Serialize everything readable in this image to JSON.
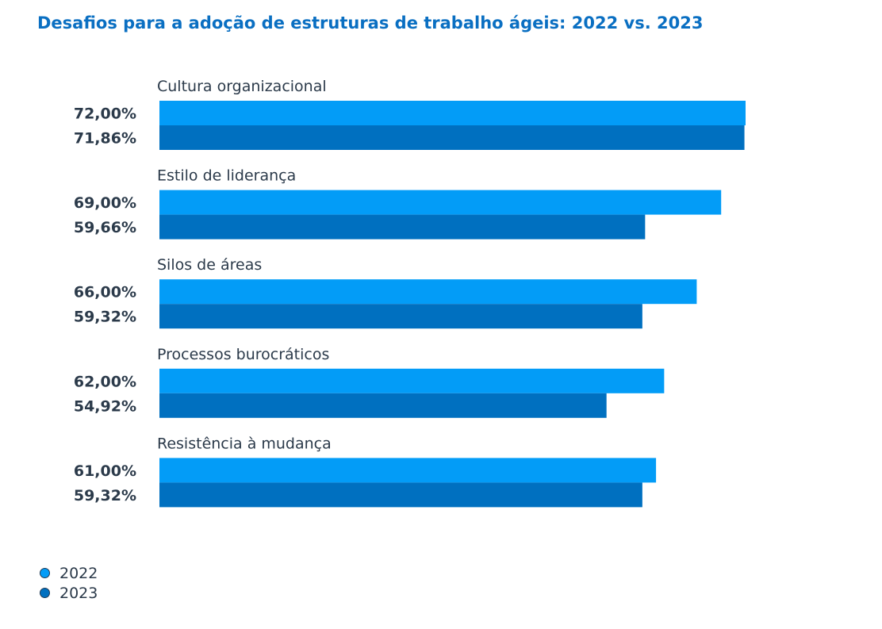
{
  "colors": {
    "title": "#0a6fc2",
    "series_2022": "#039cf7",
    "series_2023": "#0070c0",
    "text": "#2b3a4a"
  },
  "chart_data": {
    "type": "bar",
    "orientation": "horizontal",
    "title": "Desafios para a adoção de estruturas de trabalho ágeis: 2022 vs. 2023",
    "categories": [
      "Cultura organizacional",
      "Estilo de liderança",
      "Silos de áreas",
      "Processos burocráticos",
      "Resistência à mudança"
    ],
    "series": [
      {
        "name": "2022",
        "values": [
          72.0,
          69.0,
          66.0,
          62.0,
          61.0
        ],
        "labels": [
          "72,00%",
          "69,00%",
          "66,00%",
          "62,00%",
          "61,00%"
        ]
      },
      {
        "name": "2023",
        "values": [
          71.86,
          59.66,
          59.32,
          54.92,
          59.32
        ],
        "labels": [
          "71,86%",
          "59,66%",
          "59,32%",
          "54,92%",
          "59,32%"
        ]
      }
    ],
    "xlim": [
      0,
      100
    ],
    "grid": false,
    "legend_position": "bottom-left"
  }
}
